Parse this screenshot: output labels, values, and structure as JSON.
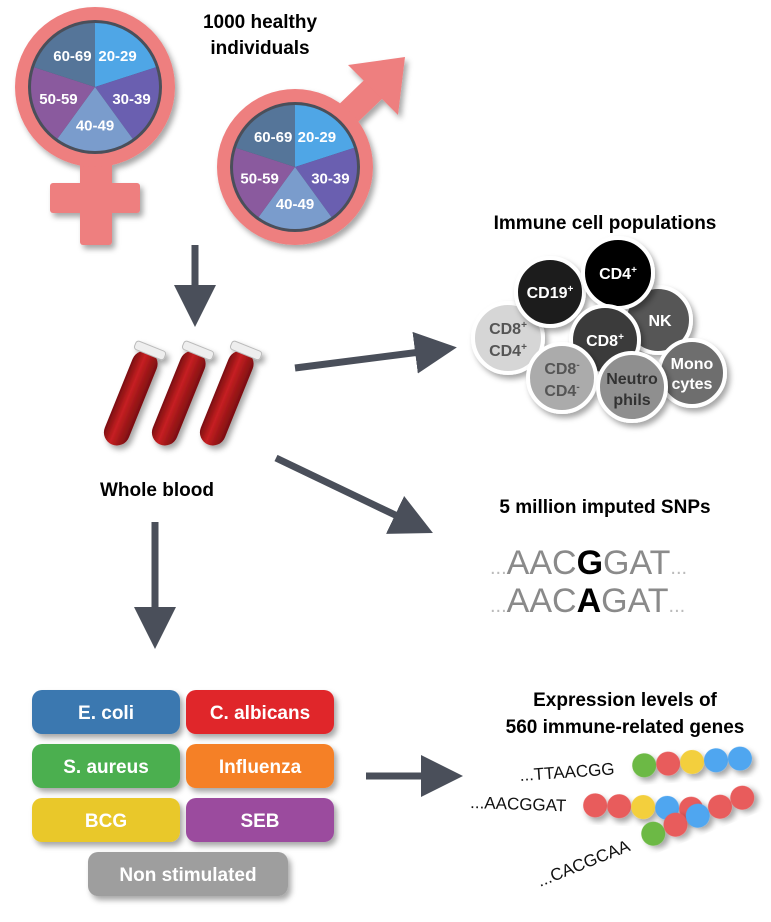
{
  "cohort": {
    "title_line1": "1000 healthy",
    "title_line2": "individuals",
    "age_groups": [
      "20-29",
      "30-39",
      "40-49",
      "50-59",
      "60-69"
    ],
    "age_colors": [
      "#4fa6e6",
      "#6a5fb0",
      "#7a9ccc",
      "#8a5a9e",
      "#557599"
    ],
    "symbol_color": "#ee7f7f"
  },
  "blood": {
    "label": "Whole blood",
    "tube_color": "#b3191b"
  },
  "immune": {
    "title": "Immune cell populations",
    "cells": [
      {
        "line1": "CD8",
        "sup1": "+",
        "line2": "CD4",
        "sup2": "+",
        "color": "#d6d6d6",
        "text": "#555555"
      },
      {
        "line1": "CD19",
        "sup1": "+",
        "color": "#1e1e1e",
        "text": "#ffffff"
      },
      {
        "line1": "NK",
        "color": "#575757",
        "text": "#ffffff"
      },
      {
        "line1": "CD4",
        "sup1": "+",
        "color": "#000000",
        "text": "#ffffff"
      },
      {
        "line1": "CD8",
        "sup1": "+",
        "color": "#3a3a3a",
        "text": "#ffffff"
      },
      {
        "line1": "CD8",
        "sup1": "-",
        "line2": "CD4",
        "sup2": "-",
        "color": "#ababab",
        "text": "#555555"
      },
      {
        "line1": "Monocytes_a",
        "color": "#6e6e6e",
        "text": "#ffffff"
      },
      {
        "line1": "Neutro",
        "line2": "phils",
        "color": "#8f8f8f",
        "text": "#333333"
      }
    ],
    "mono_line1": "Mono",
    "mono_line2": "cytes"
  },
  "snps": {
    "title": "5 million imputed SNPs",
    "seq1": {
      "dots_left": "...",
      "pre": "AAC",
      "allele": "G",
      "post": "GAT",
      "dots_right": "..."
    },
    "seq2": {
      "dots_left": "...",
      "pre": "AAC",
      "allele": "A",
      "post": "GAT",
      "dots_right": "..."
    }
  },
  "stimuli": [
    {
      "label": "E. coli",
      "color": "#3a78b0"
    },
    {
      "label": "C. albicans",
      "color": "#e0262b"
    },
    {
      "label": "S. aureus",
      "color": "#4caf50"
    },
    {
      "label": "Influenza",
      "color": "#f58025"
    },
    {
      "label": "BCG",
      "color": "#e9c82c"
    },
    {
      "label": "SEB",
      "color": "#9b4b9e"
    },
    {
      "label": "Non stimulated",
      "color": "#9e9e9e"
    }
  ],
  "expression": {
    "title_line1": "Expression levels of",
    "title_line2": "560 immune-related genes",
    "rows": [
      {
        "seq": "...TTAACGG",
        "dots": [
          "#6cb944",
          "#e85c5c",
          "#f3cf3e",
          "#4fa6f0",
          "#4fa6f0"
        ]
      },
      {
        "seq": "...AACGGAT",
        "dots": [
          "#e85c5c",
          "#e85c5c",
          "#f3cf3e",
          "#4fa6f0",
          "#e85c5c"
        ]
      },
      {
        "seq": "...CACGCAA",
        "dots": [
          "#6cb944",
          "#e85c5c",
          "#4fa6f0",
          "#e85c5c",
          "#e85c5c"
        ]
      }
    ]
  },
  "arrow_color": "#4a4f5a"
}
